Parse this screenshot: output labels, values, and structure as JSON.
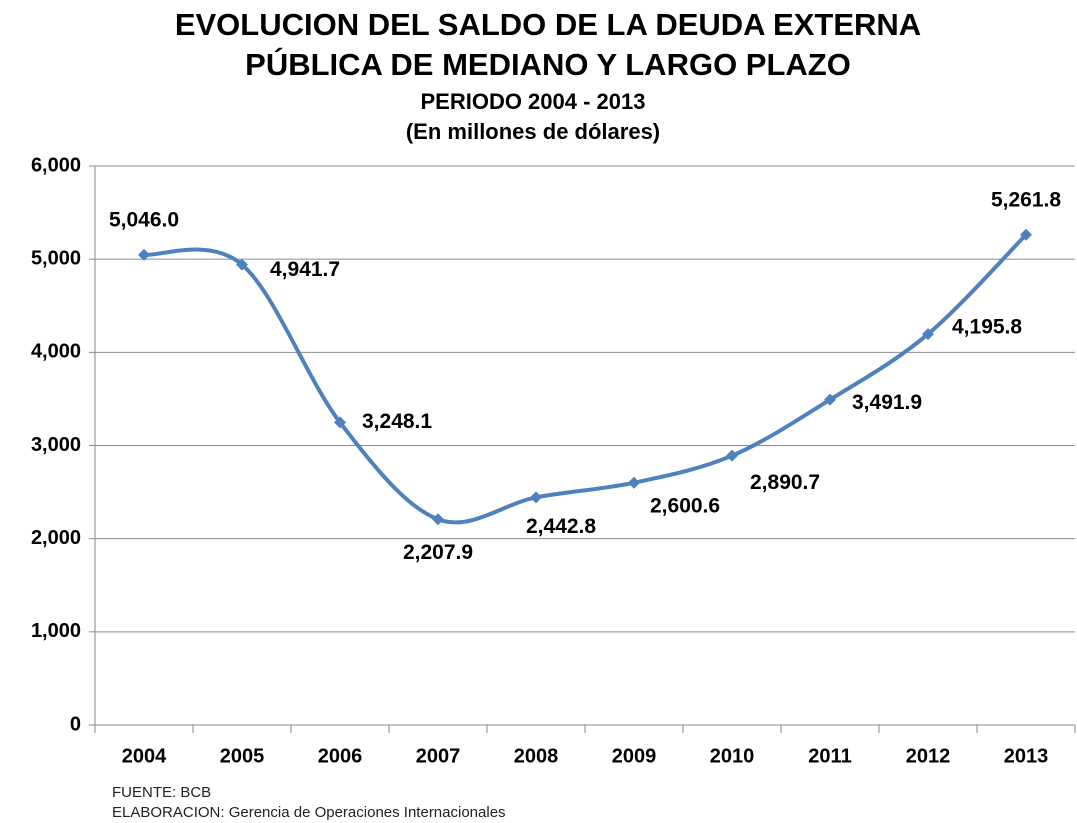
{
  "chart_data": {
    "type": "line",
    "title": [
      "EVOLUCION DEL SALDO DE LA DEUDA EXTERNA",
      "PÚBLICA DE MEDIANO Y LARGO PLAZO"
    ],
    "subtitle": [
      "PERIODO 2004 - 2013",
      "(En millones de dólares)"
    ],
    "categories": [
      "2004",
      "2005",
      "2006",
      "2007",
      "2008",
      "2009",
      "2010",
      "2011",
      "2012",
      "2013"
    ],
    "series": [
      {
        "color": "#4f81bd",
        "values": [
          5046.0,
          4941.7,
          3248.1,
          2207.9,
          2442.8,
          2600.6,
          2890.7,
          3491.9,
          4195.8,
          5261.8
        ],
        "value_labels": [
          "5,046.0",
          "4,941.7",
          "3,248.1",
          "2,207.9",
          "2,442.8",
          "2,600.6",
          "2,890.7",
          "3,491.9",
          "4,195.8",
          "5,261.8"
        ]
      }
    ],
    "ylim": [
      0,
      6000
    ],
    "yticks": [
      0,
      {
        "value": 1000,
        "label": "1,000"
      },
      {
        "value": 2000,
        "label": "2,000"
      },
      {
        "value": 3000,
        "label": "3,000"
      },
      {
        "value": 4000,
        "label": "4,000"
      },
      {
        "value": 5000,
        "label": "5,000"
      },
      {
        "value": 6000,
        "label": "6,000"
      }
    ],
    "grid": true,
    "source": [
      "FUENTE: BCB",
      "ELABORACION: Gerencia de Operaciones Internacionales"
    ]
  }
}
